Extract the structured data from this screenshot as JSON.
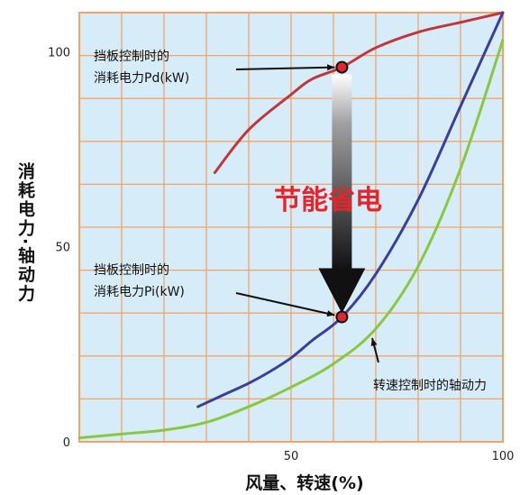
{
  "chart_data": {
    "type": "line",
    "xlabel": "风量、转速(%)",
    "ylabel": "消耗电力·轴动力",
    "xlim": [
      0,
      100
    ],
    "ylim": [
      0,
      110
    ],
    "x_ticks": [
      "50",
      "100"
    ],
    "y_ticks": [
      "0",
      "50",
      "100"
    ],
    "grid": true,
    "series": [
      {
        "key": "damper",
        "color": "#c0363c",
        "x": [
          32,
          40,
          50,
          55,
          62,
          70,
          80,
          90,
          100
        ],
        "y": [
          69,
          80,
          89,
          93,
          96,
          101,
          105,
          107.5,
          110
        ]
      },
      {
        "key": "pi",
        "color": "#3b3f9c",
        "x": [
          28,
          35,
          40,
          45,
          50,
          55,
          62,
          70,
          80,
          90,
          100
        ],
        "y": [
          9,
          12.5,
          15,
          18,
          21.5,
          26,
          32,
          43,
          62,
          86,
          110
        ]
      },
      {
        "key": "speed",
        "color": "#8cc63f",
        "x": [
          0,
          10,
          20,
          30,
          40,
          50,
          60,
          70,
          80,
          90,
          100
        ],
        "y": [
          1,
          2,
          3,
          5,
          9,
          14,
          20,
          29,
          45,
          70,
          103
        ]
      }
    ],
    "points": [
      {
        "x": 62,
        "y": 96
      },
      {
        "x": 62,
        "y": 32
      }
    ],
    "annotations": {
      "pd_line1": "挡板控制时的",
      "pd_line2": "消耗电力Pd(kW)",
      "pi_line1": "挡板控制时的",
      "pi_line2": "消耗电力Pi(kW)",
      "shaft": "转速控制时的轴动力",
      "saving": "节能省电"
    },
    "colors": {
      "plot_bg": "#d6ecf9",
      "grid": "#f2a468",
      "arrow_dark": "#111111",
      "arrow_light": "#ffffff"
    }
  }
}
